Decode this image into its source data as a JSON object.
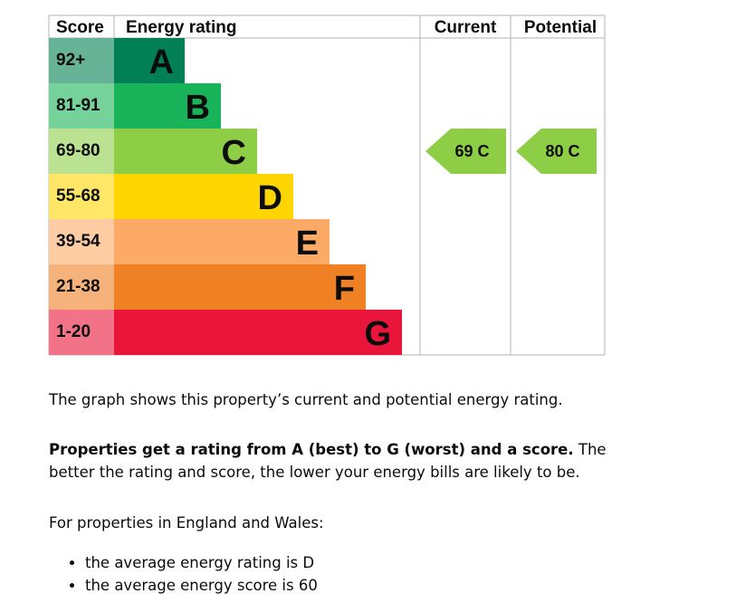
{
  "chart_data": {
    "type": "bar",
    "headers": {
      "score": "Score",
      "rating": "Energy rating",
      "current": "Current",
      "potential": "Potential"
    },
    "bands": [
      {
        "letter": "A",
        "range": "92+",
        "color": "#008054",
        "score_color": "#66b398"
      },
      {
        "letter": "B",
        "range": "81-91",
        "color": "#19b459",
        "score_color": "#75d29b"
      },
      {
        "letter": "C",
        "range": "69-80",
        "color": "#8dce46",
        "score_color": "#bbe290"
      },
      {
        "letter": "D",
        "range": "55-68",
        "color": "#ffd500",
        "score_color": "#ffe666"
      },
      {
        "letter": "E",
        "range": "39-54",
        "color": "#fcaa65",
        "score_color": "#fdcca3"
      },
      {
        "letter": "F",
        "range": "21-38",
        "color": "#ef8023",
        "score_color": "#f5b37b"
      },
      {
        "letter": "G",
        "range": "1-20",
        "color": "#e9153b",
        "score_color": "#f27388"
      }
    ],
    "current": {
      "score": 69,
      "band": "C",
      "label": "69  C"
    },
    "potential": {
      "score": 80,
      "band": "C",
      "label": "80  C"
    }
  },
  "description": {
    "p1": "The graph shows this property’s current and potential energy rating.",
    "p2_bold": "Properties get a rating from A (best) to G (worst) and a score.",
    "p2_rest": " The better the rating and score, the lower your energy bills are likely to be.",
    "p3": "For properties in England and Wales:",
    "bullets": [
      "the average energy rating is D",
      "the average energy score is 60"
    ]
  }
}
